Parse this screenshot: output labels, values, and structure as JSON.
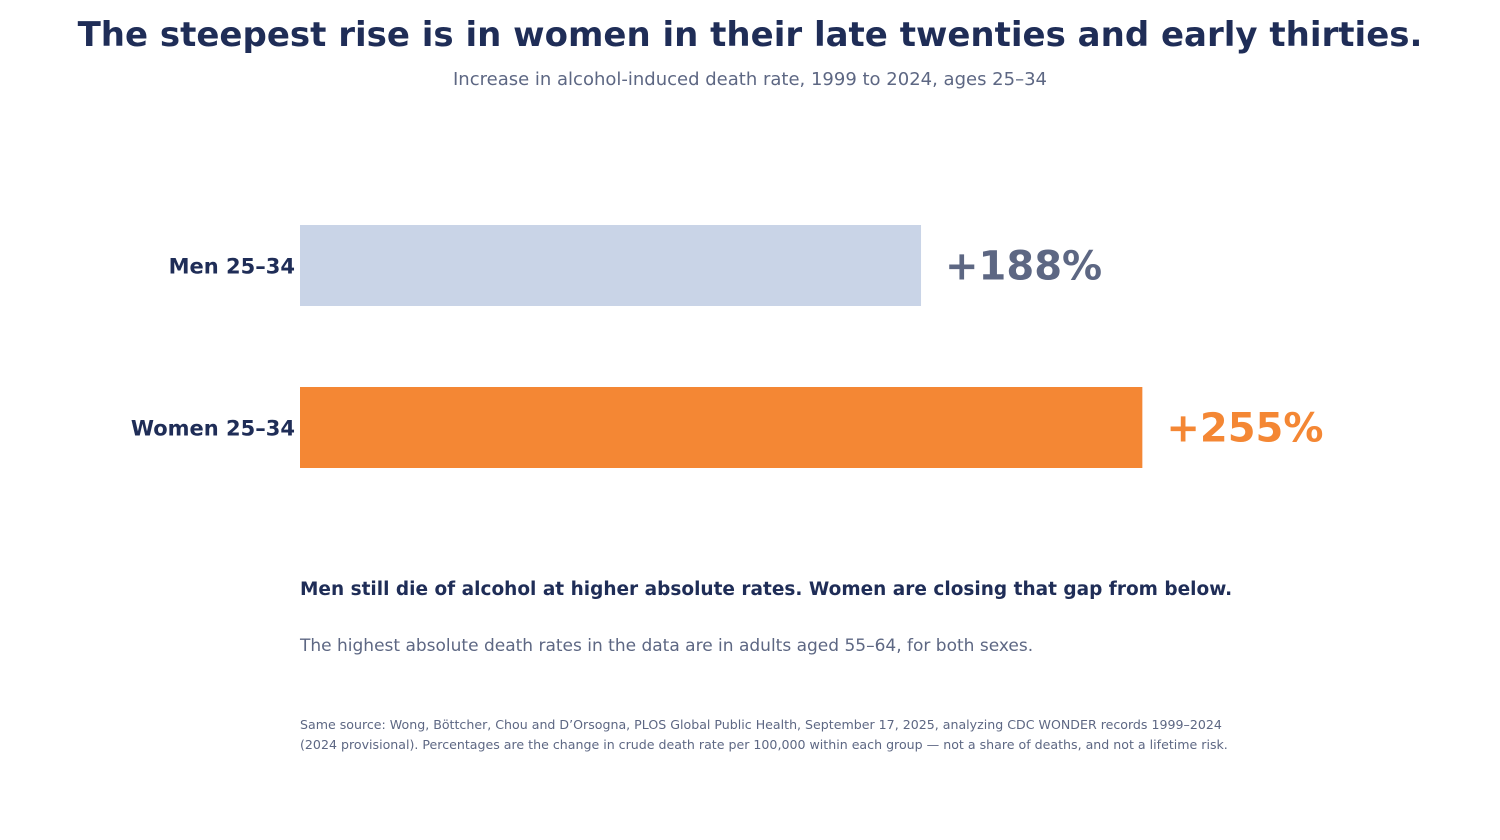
{
  "colors": {
    "navy": "#1f2d57",
    "slate": "#5d6783",
    "men_bar": "#c9d4e7",
    "women_bar": "#f48734"
  },
  "chart_data": {
    "type": "bar",
    "orientation": "horizontal",
    "title": "The steepest rise is in women in their late twenties and early thirties.",
    "subtitle": "Increase in alcohol-induced death rate, 1999 to 2024, ages 25–34",
    "categories": [
      "Men 25–34",
      "Women 25–34"
    ],
    "values": [
      188,
      255
    ],
    "value_labels": [
      "+188%",
      "+255%"
    ],
    "xlim": [
      0,
      300
    ],
    "grid": false,
    "axes_visible": false
  },
  "annotations": {
    "takeaway": "Men still die of alcohol at higher absolute rates. Women are closing that gap from below.",
    "note": "The highest absolute death rates in the data are in adults aged 55–64, for both sexes.",
    "source_line1": "Same source: Wong, Böttcher, Chou and D’Orsogna, PLOS Global Public Health, September 17, 2025, analyzing CDC WONDER records 1999–2024",
    "source_line2": "(2024 provisional). Percentages are the change in crude death rate per 100,000 within each group — not a share of deaths, and not a lifetime risk."
  }
}
